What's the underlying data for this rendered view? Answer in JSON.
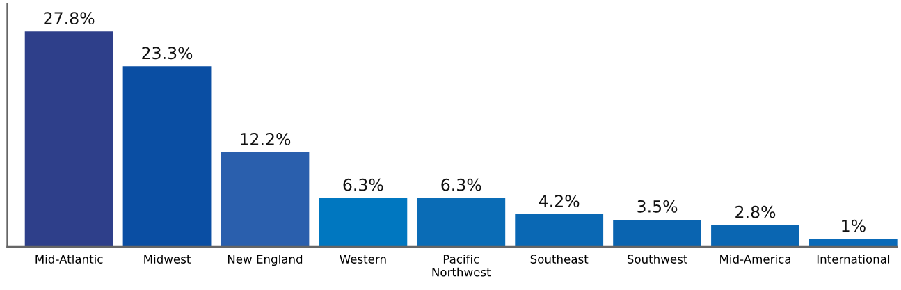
{
  "chart_data": {
    "type": "bar",
    "categories": [
      "Mid-Atlantic",
      "Midwest",
      "New England",
      "Western",
      "Pacific\nNorthwest",
      "Southeast",
      "Southwest",
      "Mid-America",
      "International"
    ],
    "values": [
      27.8,
      23.3,
      12.2,
      6.3,
      6.3,
      4.2,
      3.5,
      2.8,
      1
    ],
    "value_labels": [
      "27.8%",
      "23.3%",
      "12.2%",
      "6.3%",
      "6.3%",
      "4.2%",
      "3.5%",
      "2.8%",
      "1%"
    ],
    "colors": [
      "#2e3f8a",
      "#0a4ea3",
      "#2a5fad",
      "#0077c0",
      "#0a6cb6",
      "#0a68b4",
      "#0a64b0",
      "#0a66b2",
      "#0a6ab8"
    ],
    "grid": false,
    "legend": false
  }
}
